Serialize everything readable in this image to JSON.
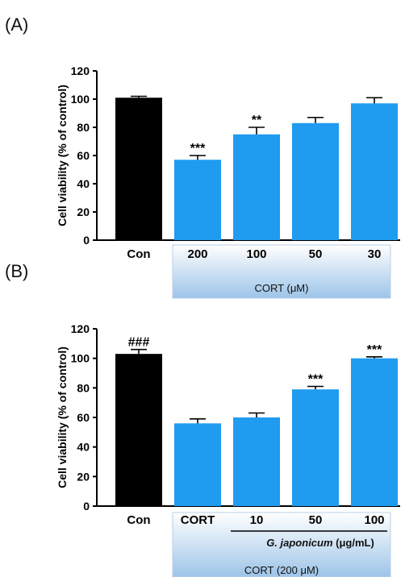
{
  "chart_data": [
    {
      "panel": "(A)",
      "type": "bar",
      "ylabel": "Cell viability (% of control)",
      "ylim": [
        0,
        120
      ],
      "yticks": [
        0,
        20,
        40,
        60,
        80,
        100,
        120
      ],
      "categories": [
        "Con",
        "200",
        "100",
        "50",
        "30"
      ],
      "values": [
        101,
        57,
        75,
        83,
        97
      ],
      "errors": [
        1,
        3,
        5,
        4,
        4
      ],
      "colors": [
        "#000000",
        "#1f9bf0",
        "#1f9bf0",
        "#1f9bf0",
        "#1f9bf0"
      ],
      "annotations": [
        "",
        "***",
        "**",
        "",
        ""
      ],
      "group_label": "CORT (μM)"
    },
    {
      "panel": "(B)",
      "type": "bar",
      "ylabel": "Cell viability (% of control)",
      "ylim": [
        0,
        120
      ],
      "yticks": [
        0,
        20,
        40,
        60,
        80,
        100,
        120
      ],
      "categories": [
        "Con",
        "CORT",
        "10",
        "50",
        "100"
      ],
      "values": [
        103,
        56,
        60,
        79,
        100
      ],
      "errors": [
        3,
        3,
        3,
        2,
        1
      ],
      "colors": [
        "#000000",
        "#1f9bf0",
        "#1f9bf0",
        "#1f9bf0",
        "#1f9bf0"
      ],
      "annotations": [
        "###",
        "",
        "",
        "***",
        "***"
      ],
      "subgroup_label_italic": "G. japonicum",
      "subgroup_label_unit": " (μg/mL)",
      "group_label": "CORT (200 μM)"
    }
  ]
}
